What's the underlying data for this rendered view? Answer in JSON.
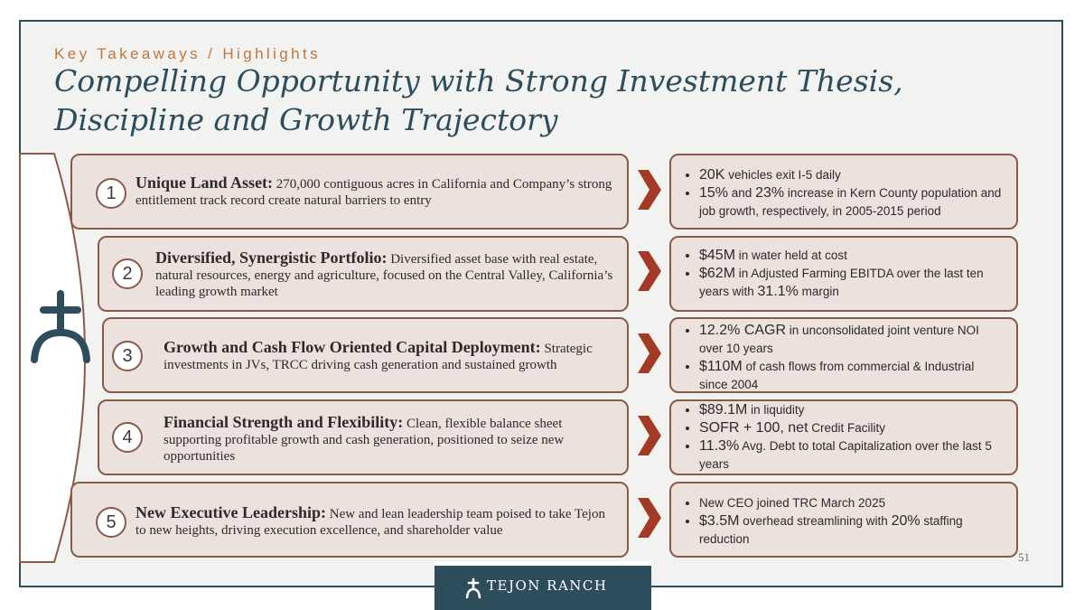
{
  "header": {
    "eyebrow": "Key Takeaways / Highlights",
    "title": "Compelling Opportunity with Strong Investment Thesis, Discipline and Growth Trajectory"
  },
  "colors": {
    "navy": "#2e4d5c",
    "accent": "#c0763b",
    "chevron": "#a33a25",
    "panel": "#ebe1dd",
    "border": "#8a5a48"
  },
  "takeaways": [
    {
      "number": "1",
      "lead": "Unique Land Asset:",
      "text": " 270,000 contiguous acres in California and Company’s strong entitlement track record create natural barriers to entry",
      "stats": [
        [
          {
            "hl": "20K",
            "t": " vehicles exit I-5 daily"
          }
        ],
        [
          {
            "hl": "15%",
            "t": " and "
          },
          {
            "hl": "23%",
            "t": " increase in Kern County population and job growth, respectively, in 2005-2015 period"
          }
        ]
      ]
    },
    {
      "number": "2",
      "lead": "Diversified, Synergistic Portfolio:",
      "text": " Diversified asset base with real estate, natural resources, energy and agriculture, focused on the Central Valley, California’s leading growth market",
      "stats": [
        [
          {
            "hl": "$45M",
            "t": " in water held at cost"
          }
        ],
        [
          {
            "hl": "$62M",
            "t": " in Adjusted Farming EBITDA over the last ten years with "
          },
          {
            "hl": "31.1%",
            "t": " margin"
          }
        ]
      ]
    },
    {
      "number": "3",
      "lead": "Growth and Cash Flow Oriented Capital Deployment:",
      "text": " Strategic investments in JVs, TRCC driving cash generation and sustained growth",
      "stats": [
        [
          {
            "hl": "12.2% CAGR",
            "t": " in unconsolidated joint venture NOI over 10 years"
          }
        ],
        [
          {
            "hl": "$110M",
            "t": " of cash flows from commercial & Industrial since 2004"
          }
        ]
      ]
    },
    {
      "number": "4",
      "lead": "Financial Strength and Flexibility:",
      "text": " Clean, flexible balance sheet supporting profitable growth and cash generation, positioned to seize new opportunities",
      "stats": [
        [
          {
            "hl": "$89.1M",
            "t": " in liquidity"
          }
        ],
        [
          {
            "hl": "SOFR + 100, net",
            "t": " Credit Facility"
          }
        ],
        [
          {
            "hl": "11.3%",
            "t": " Avg. Debt to total Capitalization over the last 5 years"
          }
        ]
      ]
    },
    {
      "number": "5",
      "lead": "New Executive Leadership:",
      "text": " New and lean leadership team poised to take Tejon to new heights, driving execution excellence, and shareholder value",
      "stats": [
        [
          {
            "hl": "",
            "t": "New CEO joined TRC March 2025"
          }
        ],
        [
          {
            "hl": "$3.5M",
            "t": " overhead streamlining with "
          },
          {
            "hl": "20%",
            "t": " staffing reduction"
          }
        ]
      ]
    }
  ],
  "footer": {
    "page_number": "51",
    "logo_text": "TEJON RANCH"
  }
}
